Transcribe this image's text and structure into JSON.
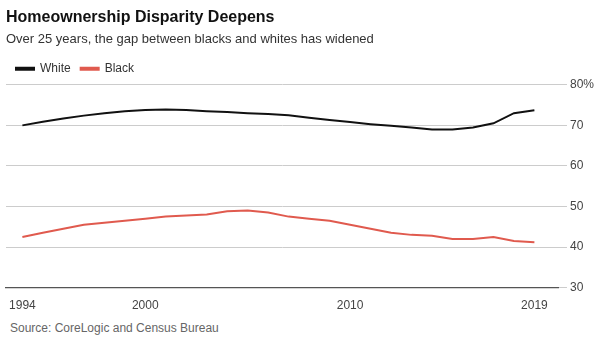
{
  "chart_data": {
    "type": "line",
    "title": "Homeownership Disparity Deepens",
    "subtitle": "Over 25 years, the gap between blacks and whites has widened",
    "source": "Source: CoreLogic and Census Bureau",
    "x": [
      1994,
      1995,
      1996,
      1997,
      1998,
      1999,
      2000,
      2001,
      2002,
      2003,
      2004,
      2005,
      2006,
      2007,
      2008,
      2009,
      2010,
      2011,
      2012,
      2013,
      2014,
      2015,
      2016,
      2017,
      2018,
      2019
    ],
    "series": [
      {
        "name": "White",
        "color": "#111111",
        "values": [
          70.0,
          70.9,
          71.7,
          72.4,
          73.0,
          73.5,
          73.8,
          73.9,
          73.8,
          73.5,
          73.3,
          73.0,
          72.8,
          72.5,
          71.9,
          71.3,
          70.8,
          70.3,
          69.9,
          69.5,
          69.0,
          69.0,
          69.5,
          70.5,
          73.0,
          73.7
        ]
      },
      {
        "name": "Black",
        "color": "#e05a4e",
        "values": [
          42.5,
          43.5,
          44.5,
          45.5,
          46.0,
          46.5,
          47.0,
          47.5,
          47.8,
          48.0,
          48.8,
          49.0,
          48.5,
          47.5,
          47.0,
          46.5,
          45.5,
          44.5,
          43.5,
          43.0,
          42.8,
          42.0,
          42.0,
          42.5,
          41.5,
          41.2
        ]
      }
    ],
    "xlim": [
      1993.2,
      2020.2
    ],
    "xticks": [
      1994,
      2000,
      2010,
      2019
    ],
    "ylim": [
      30,
      80
    ],
    "yticks": [
      30,
      40,
      50,
      60,
      70,
      {
        "value": 80,
        "label": "80%"
      }
    ],
    "grid": true,
    "legend": "upper left"
  }
}
